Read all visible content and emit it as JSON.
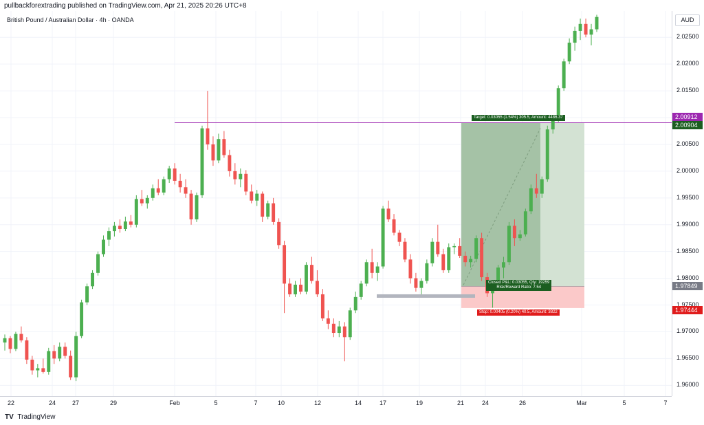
{
  "header": {
    "publisher": "pullbackforextrading published on TradingView.com, Apr 21, 2025 20:26 UTC+8"
  },
  "chart": {
    "symbol": "British Pound / Australian Dollar · 4h · OANDA",
    "currency": "AUD",
    "brand": "TradingView"
  },
  "price_tags": {
    "upper": "2.00912",
    "resistance": "2.00904",
    "current": "1.97849",
    "stop": "1.97444"
  },
  "position": {
    "target_label": "Target: 0.03055 (1.54%) 305.5, Amount: 4486.37",
    "closed_label_1": "Closed P&L: 0.03055, Qty: 19259",
    "closed_label_2": "Risk/Reward Ratio: 7.54",
    "stop_label": "Stop: 0.00405 (0.20%) 40.5, Amount: 3822"
  },
  "colors": {
    "up": "#26a69a",
    "up_fill": "#4caf50",
    "down": "#ef5350",
    "resistance_line": "#9c27b0",
    "target_zone": "#a5c2a6",
    "target_zone_light": "#d3e2d3",
    "stop_zone": "#fbc9c9",
    "target_tag": "#1b5e20",
    "stop_tag": "#e01c1c",
    "current_tag": "#787b86"
  },
  "chart_data": {
    "type": "candlestick",
    "title": "British Pound / Australian Dollar · 4h · OANDA",
    "y_axis": {
      "ticks": [
        "2.02500",
        "2.02000",
        "2.01500",
        "2.01000",
        "2.00500",
        "2.00000",
        "1.99500",
        "1.99000",
        "1.98500",
        "1.98000",
        "1.97500",
        "1.97000",
        "1.96500",
        "1.96000"
      ],
      "range": [
        1.9585,
        2.0294
      ]
    },
    "x_axis": {
      "ticks": [
        "22",
        "24",
        "27",
        "29",
        "Feb",
        "5",
        "7",
        "10",
        "12",
        "14",
        "17",
        "19",
        "21",
        "24",
        "26",
        "Mar",
        "5",
        "7"
      ]
    },
    "resistance_level": 2.00904,
    "entry_price": 1.97849,
    "stop_price": 1.97444,
    "target_price": 2.00904,
    "candles": [
      [
        1.968,
        1.9695,
        1.9665,
        1.9688
      ],
      [
        1.9688,
        1.9692,
        1.966,
        1.9668
      ],
      [
        1.9668,
        1.97,
        1.9664,
        1.9696
      ],
      [
        1.9696,
        1.971,
        1.968,
        1.9684
      ],
      [
        1.9684,
        1.969,
        1.964,
        1.9648
      ],
      [
        1.9648,
        1.9655,
        1.962,
        1.9628
      ],
      [
        1.9628,
        1.964,
        1.9615,
        1.9632
      ],
      [
        1.9632,
        1.965,
        1.9622,
        1.9625
      ],
      [
        1.9625,
        1.967,
        1.962,
        1.9664
      ],
      [
        1.9664,
        1.9675,
        1.964,
        1.965
      ],
      [
        1.965,
        1.968,
        1.9645,
        1.9672
      ],
      [
        1.9672,
        1.968,
        1.965,
        1.9655
      ],
      [
        1.9655,
        1.9665,
        1.961,
        1.9615
      ],
      [
        1.9615,
        1.97,
        1.9608,
        1.9692
      ],
      [
        1.9692,
        1.976,
        1.9688,
        1.9755
      ],
      [
        1.9755,
        1.979,
        1.975,
        1.9785
      ],
      [
        1.9785,
        1.9815,
        1.978,
        1.981
      ],
      [
        1.981,
        1.985,
        1.9805,
        1.9845
      ],
      [
        1.9845,
        1.988,
        1.984,
        1.9872
      ],
      [
        1.9872,
        1.9895,
        1.986,
        1.9888
      ],
      [
        1.9888,
        1.9905,
        1.9878,
        1.9898
      ],
      [
        1.9898,
        1.991,
        1.9885,
        1.9892
      ],
      [
        1.9892,
        1.9915,
        1.9888,
        1.9906
      ],
      [
        1.9906,
        1.9918,
        1.9895,
        1.99
      ],
      [
        1.99,
        1.9955,
        1.9895,
        1.9948
      ],
      [
        1.9948,
        1.9965,
        1.9935,
        1.994
      ],
      [
        1.994,
        1.9955,
        1.993,
        1.995
      ],
      [
        1.995,
        1.9975,
        1.9945,
        1.9968
      ],
      [
        1.9968,
        1.9985,
        1.9955,
        1.996
      ],
      [
        1.996,
        1.999,
        1.9955,
        1.9985
      ],
      [
        1.9985,
        2.001,
        1.9978,
        2.0005
      ],
      [
        2.0005,
        2.0015,
        1.9975,
        1.9982
      ],
      [
        1.9982,
        1.9995,
        1.996,
        1.997
      ],
      [
        1.997,
        1.9985,
        1.995,
        1.9958
      ],
      [
        1.9958,
        1.9965,
        1.99,
        1.991
      ],
      [
        1.991,
        1.996,
        1.9905,
        1.9955
      ],
      [
        1.9955,
        2.0085,
        1.995,
        2.008
      ],
      [
        2.008,
        2.015,
        2.004,
        2.005
      ],
      [
        2.005,
        2.0065,
        2.001,
        2.002
      ],
      [
        2.002,
        2.007,
        2.0015,
        2.006
      ],
      [
        2.006,
        2.0075,
        2.0025,
        2.003
      ],
      [
        2.003,
        2.004,
        1.999,
        2.0
      ],
      [
        2.0,
        2.0015,
        1.9975,
        1.9985
      ],
      [
        1.9985,
        2.0005,
        1.997,
        1.9995
      ],
      [
        1.9995,
        2.0002,
        1.9955,
        1.9962
      ],
      [
        1.9962,
        1.9975,
        1.994,
        1.9945
      ],
      [
        1.9945,
        1.9965,
        1.9935,
        1.9958
      ],
      [
        1.9958,
        1.9962,
        1.9905,
        1.9915
      ],
      [
        1.9915,
        1.9945,
        1.991,
        1.994
      ],
      [
        1.994,
        1.995,
        1.99,
        1.9905
      ],
      [
        1.9905,
        1.9912,
        1.9855,
        1.9862
      ],
      [
        1.9862,
        1.987,
        1.9735,
        1.979
      ],
      [
        1.979,
        1.98,
        1.9765,
        1.977
      ],
      [
        1.977,
        1.9795,
        1.9765,
        1.9788
      ],
      [
        1.9788,
        1.98,
        1.977,
        1.9775
      ],
      [
        1.9775,
        1.983,
        1.977,
        1.9825
      ],
      [
        1.9825,
        1.984,
        1.979,
        1.9795
      ],
      [
        1.9795,
        1.9815,
        1.9765,
        1.977
      ],
      [
        1.977,
        1.978,
        1.972,
        1.9725
      ],
      [
        1.9725,
        1.974,
        1.9705,
        1.9715
      ],
      [
        1.9715,
        1.9725,
        1.969,
        1.9698
      ],
      [
        1.9698,
        1.972,
        1.969,
        1.971
      ],
      [
        1.971,
        1.9718,
        1.9645,
        1.969
      ],
      [
        1.969,
        1.9745,
        1.9685,
        1.974
      ],
      [
        1.974,
        1.9775,
        1.9735,
        1.9765
      ],
      [
        1.9765,
        1.9795,
        1.976,
        1.979
      ],
      [
        1.979,
        1.9835,
        1.9785,
        1.983
      ],
      [
        1.983,
        1.9855,
        1.98,
        1.981
      ],
      [
        1.981,
        1.983,
        1.9795,
        1.9822
      ],
      [
        1.9822,
        1.9935,
        1.9818,
        1.993
      ],
      [
        1.993,
        1.9945,
        1.9905,
        1.991
      ],
      [
        1.991,
        1.992,
        1.988,
        1.9885
      ],
      [
        1.9885,
        1.989,
        1.986,
        1.9868
      ],
      [
        1.9868,
        1.9875,
        1.983,
        1.9835
      ],
      [
        1.9835,
        1.9845,
        1.979,
        1.98
      ],
      [
        1.98,
        1.981,
        1.9775,
        1.9782
      ],
      [
        1.9782,
        1.98,
        1.977,
        1.9795
      ],
      [
        1.9795,
        1.9835,
        1.979,
        1.9828
      ],
      [
        1.9828,
        1.9875,
        1.9822,
        1.9868
      ],
      [
        1.9868,
        1.99,
        1.984,
        1.9845
      ],
      [
        1.9845,
        1.9855,
        1.981,
        1.9815
      ],
      [
        1.9815,
        1.9865,
        1.981,
        1.9858
      ],
      [
        1.9858,
        1.9865,
        1.9845,
        1.986
      ],
      [
        1.986,
        1.9875,
        1.9838,
        1.9842
      ],
      [
        1.9842,
        1.985,
        1.9822,
        1.983
      ],
      [
        1.983,
        1.9842,
        1.982,
        1.9836
      ],
      [
        1.9836,
        1.988,
        1.983,
        1.9875
      ],
      [
        1.9875,
        1.9885,
        1.9795,
        1.9802
      ],
      [
        1.9802,
        1.981,
        1.9765,
        1.9772
      ],
      [
        1.9772,
        1.979,
        1.9745,
        1.9785
      ],
      [
        1.9785,
        1.9825,
        1.978,
        1.982
      ],
      [
        1.982,
        1.984,
        1.98,
        1.983
      ],
      [
        1.983,
        1.9905,
        1.9825,
        1.9898
      ],
      [
        1.9898,
        1.991,
        1.986,
        1.9875
      ],
      [
        1.9875,
        1.989,
        1.987,
        1.9882
      ],
      [
        1.9882,
        1.993,
        1.9878,
        1.9925
      ],
      [
        1.9925,
        1.9975,
        1.992,
        1.9968
      ],
      [
        1.9968,
        1.9995,
        1.995,
        1.9958
      ],
      [
        1.9958,
        1.999,
        1.995,
        1.9985
      ],
      [
        1.9985,
        2.0085,
        1.998,
        2.0078
      ],
      [
        2.0078,
        2.0105,
        2.007,
        2.0098
      ],
      [
        2.0098,
        2.016,
        2.0092,
        2.0155
      ],
      [
        2.0155,
        2.021,
        2.015,
        2.0205
      ],
      [
        2.0205,
        2.0248,
        2.02,
        2.024
      ],
      [
        2.024,
        2.027,
        2.0225,
        2.0262
      ],
      [
        2.0262,
        2.0285,
        2.0245,
        2.0275
      ],
      [
        2.0275,
        2.0285,
        2.025,
        2.0255
      ],
      [
        2.0255,
        2.0275,
        2.0235,
        2.0265
      ],
      [
        2.0265,
        2.0292,
        2.026,
        2.0288
      ]
    ]
  }
}
